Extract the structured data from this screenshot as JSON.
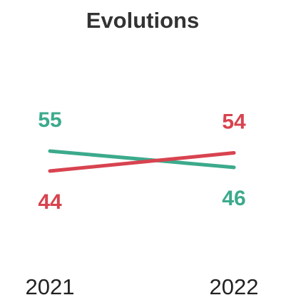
{
  "chart_data": {
    "type": "line",
    "title": "Evolutions",
    "categories": [
      "2021",
      "2022"
    ],
    "series": [
      {
        "color": "#3caa8c",
        "values": [
          55,
          46
        ]
      },
      {
        "color": "#d8434f",
        "values": [
          44,
          54
        ]
      }
    ]
  }
}
